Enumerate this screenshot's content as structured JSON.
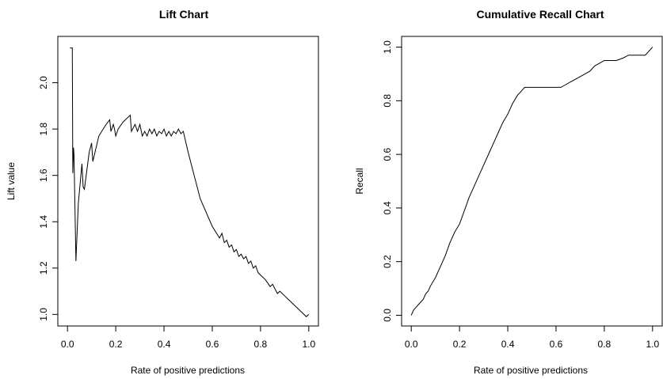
{
  "chart_data": [
    {
      "type": "line",
      "title": "Lift Chart",
      "xlabel": "Rate of positive predictions",
      "ylabel": "Lift value",
      "xlim": [
        -0.04,
        1.04
      ],
      "ylim": [
        0.95,
        2.2
      ],
      "x_ticks": [
        "0.0",
        "0.2",
        "0.4",
        "0.6",
        "0.8",
        "1.0"
      ],
      "y_ticks": [
        "1.0",
        "1.2",
        "1.4",
        "1.6",
        "1.8",
        "2.0"
      ],
      "grid": false,
      "series": [
        {
          "x": [
            0.01,
            0.02,
            0.022,
            0.025,
            0.027,
            0.035,
            0.045,
            0.06,
            0.065,
            0.07,
            0.09,
            0.1,
            0.105,
            0.13,
            0.16,
            0.175,
            0.18,
            0.19,
            0.195,
            0.2,
            0.21,
            0.23,
            0.26,
            0.265,
            0.27,
            0.28,
            0.29,
            0.3,
            0.31,
            0.32,
            0.33,
            0.34,
            0.35,
            0.36,
            0.37,
            0.38,
            0.39,
            0.4,
            0.41,
            0.42,
            0.43,
            0.44,
            0.45,
            0.46,
            0.47,
            0.48,
            0.5,
            0.55,
            0.6,
            0.63,
            0.64,
            0.65,
            0.66,
            0.67,
            0.68,
            0.69,
            0.7,
            0.71,
            0.72,
            0.73,
            0.74,
            0.75,
            0.76,
            0.77,
            0.78,
            0.79,
            0.8,
            0.82,
            0.84,
            0.85,
            0.86,
            0.87,
            0.88,
            0.9,
            0.92,
            0.94,
            0.96,
            0.98,
            0.99,
            1.0
          ],
          "values": [
            2.15,
            2.15,
            1.61,
            1.72,
            1.69,
            1.23,
            1.48,
            1.65,
            1.55,
            1.54,
            1.7,
            1.74,
            1.66,
            1.77,
            1.82,
            1.84,
            1.79,
            1.82,
            1.8,
            1.77,
            1.8,
            1.83,
            1.86,
            1.79,
            1.8,
            1.82,
            1.79,
            1.82,
            1.77,
            1.79,
            1.77,
            1.8,
            1.78,
            1.8,
            1.77,
            1.79,
            1.78,
            1.8,
            1.77,
            1.79,
            1.77,
            1.79,
            1.78,
            1.8,
            1.78,
            1.79,
            1.7,
            1.5,
            1.38,
            1.33,
            1.35,
            1.31,
            1.32,
            1.29,
            1.3,
            1.27,
            1.28,
            1.25,
            1.26,
            1.24,
            1.25,
            1.22,
            1.23,
            1.2,
            1.21,
            1.18,
            1.17,
            1.15,
            1.12,
            1.13,
            1.11,
            1.09,
            1.1,
            1.08,
            1.06,
            1.04,
            1.02,
            1.0,
            0.99,
            1.0
          ]
        }
      ]
    },
    {
      "type": "line",
      "title": "Cumulative Recall Chart",
      "xlabel": "Rate of positive predictions",
      "ylabel": "Recall",
      "xlim": [
        -0.04,
        1.04
      ],
      "ylim": [
        -0.04,
        1.04
      ],
      "x_ticks": [
        "0.0",
        "0.2",
        "0.4",
        "0.6",
        "0.8",
        "1.0"
      ],
      "y_ticks": [
        "0.0",
        "0.2",
        "0.4",
        "0.6",
        "0.8",
        "1.0"
      ],
      "grid": false,
      "series": [
        {
          "x": [
            0.0,
            0.01,
            0.02,
            0.03,
            0.04,
            0.05,
            0.06,
            0.07,
            0.08,
            0.1,
            0.12,
            0.14,
            0.16,
            0.18,
            0.2,
            0.22,
            0.24,
            0.26,
            0.28,
            0.3,
            0.32,
            0.34,
            0.36,
            0.38,
            0.4,
            0.42,
            0.44,
            0.46,
            0.47,
            0.48,
            0.5,
            0.55,
            0.6,
            0.62,
            0.64,
            0.66,
            0.68,
            0.7,
            0.72,
            0.74,
            0.76,
            0.78,
            0.8,
            0.82,
            0.85,
            0.88,
            0.9,
            0.92,
            0.95,
            0.97,
            0.99,
            1.0
          ],
          "values": [
            0.0,
            0.02,
            0.03,
            0.04,
            0.05,
            0.06,
            0.08,
            0.09,
            0.11,
            0.14,
            0.18,
            0.22,
            0.27,
            0.31,
            0.34,
            0.39,
            0.44,
            0.48,
            0.52,
            0.56,
            0.6,
            0.64,
            0.68,
            0.72,
            0.75,
            0.79,
            0.82,
            0.84,
            0.85,
            0.85,
            0.85,
            0.85,
            0.85,
            0.85,
            0.86,
            0.87,
            0.88,
            0.89,
            0.9,
            0.91,
            0.93,
            0.94,
            0.95,
            0.95,
            0.95,
            0.96,
            0.97,
            0.97,
            0.97,
            0.97,
            0.99,
            1.0
          ]
        }
      ]
    }
  ]
}
